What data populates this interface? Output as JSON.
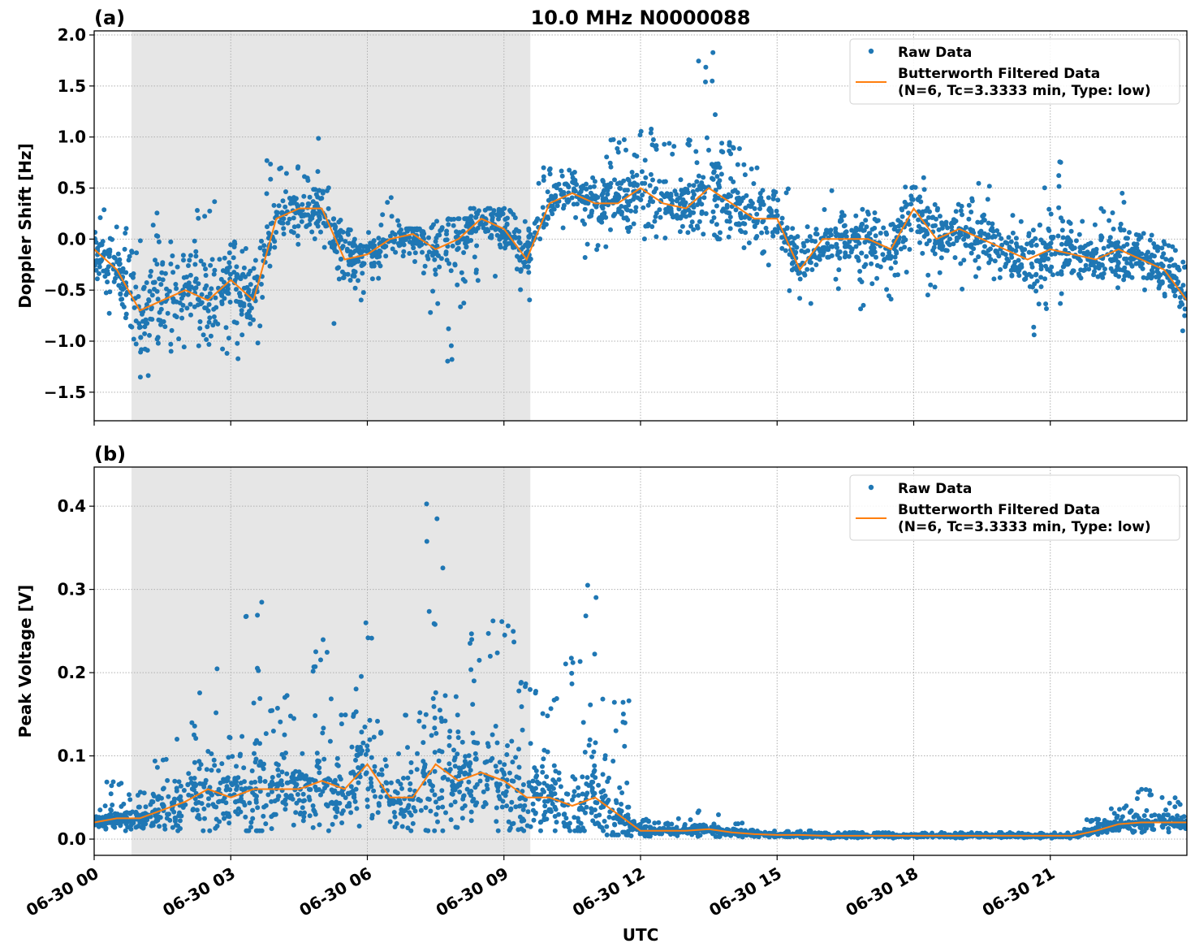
{
  "chart_data": [
    {
      "type": "scatter+line",
      "panel_label": "(a)",
      "title": "10.0 MHz N0000088",
      "xlabel": "",
      "ylabel": "Doppler Shift [Hz]",
      "xlim_hours_utc": [
        0,
        24
      ],
      "ylim": [
        -1.78,
        2.04
      ],
      "yticks": [
        -1.5,
        -1.0,
        -0.5,
        0.0,
        0.5,
        1.0,
        1.5,
        2.0
      ],
      "ytick_labels": [
        "−1.5",
        "−1.0",
        "−0.5",
        "0.0",
        "0.5",
        "1.0",
        "1.5",
        "2.0"
      ],
      "grid": true,
      "legend_placement": "top-right",
      "shaded_span_hours_utc": [
        0.82,
        9.58
      ],
      "colors": {
        "raw": "#1f77b4",
        "filtered": "#ff7f0e",
        "shade": "#e6e6e6"
      },
      "series": [
        {
          "name": "Raw Data",
          "kind": "scatter",
          "note_values": "per 30-min bin min / max of the raw points (Hz)",
          "hours": [
            0,
            0.5,
            1,
            1.5,
            2,
            2.5,
            3,
            3.5,
            4,
            4.5,
            5,
            5.5,
            6,
            6.5,
            7,
            7.5,
            8,
            8.5,
            9,
            9.5,
            10,
            10.5,
            11,
            11.5,
            12,
            12.5,
            13,
            13.5,
            14,
            14.5,
            15,
            15.5,
            16,
            16.5,
            17,
            17.5,
            18,
            18.5,
            19,
            19.5,
            20,
            20.5,
            21,
            21.5,
            22,
            22.5,
            23,
            23.5,
            24
          ],
          "min": [
            -0.6,
            -0.8,
            -1.6,
            -1.4,
            -1.2,
            -1.3,
            -1.25,
            -1.2,
            -0.3,
            -0.1,
            -0.3,
            -0.9,
            -0.6,
            -0.3,
            -0.8,
            -0.8,
            -1.2,
            -0.5,
            -0.4,
            -0.6,
            0.0,
            0.1,
            -0.2,
            0.0,
            0.0,
            0.0,
            0.0,
            0.0,
            0.0,
            -0.2,
            -0.3,
            -0.7,
            -0.3,
            -0.5,
            -0.7,
            -0.6,
            -0.5,
            -0.6,
            -0.5,
            -0.6,
            -0.6,
            -1.05,
            -0.7,
            -0.6,
            -0.5,
            -0.5,
            -0.7,
            -0.8,
            -0.9
          ],
          "max": [
            0.3,
            0.2,
            0.0,
            0.3,
            0.0,
            0.45,
            0.0,
            0.0,
            0.8,
            0.75,
            1.05,
            0.2,
            0.1,
            0.5,
            0.1,
            0.3,
            0.2,
            0.3,
            0.3,
            0.2,
            0.7,
            0.7,
            0.6,
            1.0,
            1.2,
            1.0,
            1.0,
            1.85,
            1.0,
            0.8,
            0.5,
            0.2,
            0.5,
            0.3,
            0.3,
            0.3,
            0.65,
            0.4,
            0.4,
            0.55,
            0.3,
            0.2,
            0.9,
            0.2,
            0.3,
            0.45,
            0.1,
            0.0,
            -0.2
          ]
        },
        {
          "name": "Butterworth Filtered Data\n(N=6, Tc=3.3333 min, Type: low)",
          "kind": "line",
          "hours": [
            0,
            0.5,
            1,
            1.5,
            2,
            2.5,
            3,
            3.5,
            4,
            4.5,
            5,
            5.5,
            6,
            6.5,
            7,
            7.5,
            8,
            8.5,
            9,
            9.5,
            10,
            10.5,
            11,
            11.5,
            12,
            12.5,
            13,
            13.5,
            14,
            14.5,
            15,
            15.5,
            16,
            16.5,
            17,
            17.5,
            18,
            18.5,
            19,
            19.5,
            20,
            20.5,
            21,
            21.5,
            22,
            22.5,
            23,
            23.5,
            24
          ],
          "values": [
            -0.1,
            -0.3,
            -0.7,
            -0.6,
            -0.5,
            -0.6,
            -0.4,
            -0.6,
            0.2,
            0.3,
            0.3,
            -0.2,
            -0.15,
            0.0,
            0.05,
            -0.1,
            0.0,
            0.2,
            0.1,
            -0.2,
            0.35,
            0.45,
            0.35,
            0.35,
            0.5,
            0.35,
            0.3,
            0.5,
            0.35,
            0.2,
            0.2,
            -0.3,
            0.0,
            0.0,
            0.0,
            -0.1,
            0.3,
            0.0,
            0.1,
            0.0,
            -0.1,
            -0.2,
            -0.1,
            -0.15,
            -0.2,
            -0.1,
            -0.2,
            -0.3,
            -0.6
          ]
        }
      ],
      "legend": {
        "raw_label": "Raw Data",
        "filtered_label_1": "Butterworth Filtered Data",
        "filtered_label_2": "(N=6, Tc=3.3333 min, Type: low)"
      }
    },
    {
      "type": "scatter+line",
      "panel_label": "(b)",
      "title": "",
      "xlabel": "UTC",
      "ylabel": "Peak Voltage [V]",
      "xlim_hours_utc": [
        0,
        24
      ],
      "ylim": [
        -0.0195,
        0.447
      ],
      "yticks": [
        0.0,
        0.1,
        0.2,
        0.3,
        0.4
      ],
      "ytick_labels": [
        "0.0",
        "0.1",
        "0.2",
        "0.3",
        "0.4"
      ],
      "xticks_hours_utc": [
        0,
        3,
        6,
        9,
        12,
        15,
        18,
        21
      ],
      "xtick_labels": [
        "06-30 00",
        "06-30 03",
        "06-30 06",
        "06-30 09",
        "06-30 12",
        "06-30 15",
        "06-30 18",
        "06-30 21"
      ],
      "grid": true,
      "legend_placement": "top-right",
      "shaded_span_hours_utc": [
        0.82,
        9.58
      ],
      "colors": {
        "raw": "#1f77b4",
        "filtered": "#ff7f0e",
        "shade": "#e6e6e6"
      },
      "series": [
        {
          "name": "Raw Data",
          "kind": "scatter",
          "note_values": "per 30-min bin min / max of the raw points (V)",
          "hours": [
            0,
            0.5,
            1,
            1.5,
            2,
            2.5,
            3,
            3.5,
            4,
            4.5,
            5,
            5.5,
            6,
            6.5,
            7,
            7.5,
            8,
            8.5,
            9,
            9.5,
            10,
            10.5,
            11,
            11.5,
            12,
            12.5,
            13,
            13.5,
            14,
            14.5,
            15,
            15.5,
            16,
            16.5,
            17,
            17.5,
            18,
            18.5,
            19,
            19.5,
            20,
            20.5,
            21,
            21.5,
            22,
            22.5,
            23,
            23.5,
            24
          ],
          "min": [
            0.01,
            0.01,
            0.01,
            0.01,
            0.01,
            0.01,
            0.01,
            0.01,
            0.01,
            0.01,
            0.01,
            0.01,
            0.01,
            0.01,
            0.01,
            0.01,
            0.01,
            0.01,
            0.01,
            0.01,
            0.01,
            0.01,
            0.01,
            0.005,
            0.003,
            0.003,
            0.003,
            0.003,
            0.002,
            0.002,
            0.001,
            0.001,
            0.001,
            0.001,
            0.001,
            0.001,
            0.001,
            0.001,
            0.001,
            0.001,
            0.001,
            0.001,
            0.001,
            0.001,
            0.005,
            0.008,
            0.008,
            0.008,
            0.008
          ],
          "max": [
            0.04,
            0.07,
            0.06,
            0.1,
            0.14,
            0.235,
            0.14,
            0.29,
            0.18,
            0.15,
            0.24,
            0.16,
            0.26,
            0.14,
            0.16,
            0.425,
            0.22,
            0.25,
            0.275,
            0.19,
            0.17,
            0.22,
            0.31,
            0.17,
            0.025,
            0.02,
            0.025,
            0.035,
            0.02,
            0.012,
            0.01,
            0.01,
            0.008,
            0.008,
            0.008,
            0.008,
            0.008,
            0.008,
            0.008,
            0.008,
            0.008,
            0.008,
            0.008,
            0.008,
            0.025,
            0.04,
            0.06,
            0.05,
            0.045
          ]
        },
        {
          "name": "Butterworth Filtered Data\n(N=6, Tc=3.3333 min, Type: low)",
          "kind": "line",
          "hours": [
            0,
            0.5,
            1,
            1.5,
            2,
            2.5,
            3,
            3.5,
            4,
            4.5,
            5,
            5.5,
            6,
            6.5,
            7,
            7.5,
            8,
            8.5,
            9,
            9.5,
            10,
            10.5,
            11,
            11.5,
            12,
            12.5,
            13,
            13.5,
            14,
            14.5,
            15,
            15.5,
            16,
            16.5,
            17,
            17.5,
            18,
            18.5,
            19,
            19.5,
            20,
            20.5,
            21,
            21.5,
            22,
            22.5,
            23,
            23.5,
            24
          ],
          "values": [
            0.02,
            0.025,
            0.025,
            0.035,
            0.045,
            0.06,
            0.05,
            0.06,
            0.06,
            0.06,
            0.07,
            0.06,
            0.09,
            0.05,
            0.05,
            0.09,
            0.07,
            0.08,
            0.07,
            0.05,
            0.05,
            0.04,
            0.05,
            0.03,
            0.01,
            0.01,
            0.01,
            0.012,
            0.008,
            0.006,
            0.005,
            0.005,
            0.004,
            0.004,
            0.004,
            0.004,
            0.004,
            0.004,
            0.004,
            0.004,
            0.004,
            0.004,
            0.004,
            0.004,
            0.01,
            0.018,
            0.02,
            0.02,
            0.02
          ]
        }
      ],
      "legend": {
        "raw_label": "Raw Data",
        "filtered_label_1": "Butterworth Filtered Data",
        "filtered_label_2": "(N=6, Tc=3.3333 min, Type: low)"
      }
    }
  ]
}
